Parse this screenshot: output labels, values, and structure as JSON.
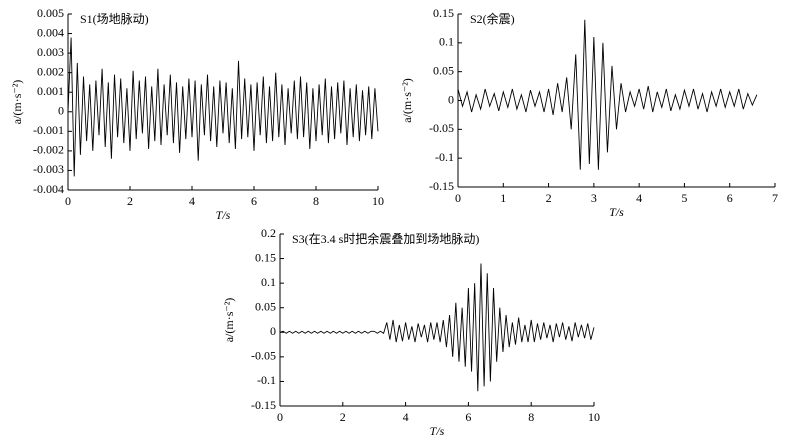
{
  "chart_data": [
    {
      "type": "line",
      "title": "S1(场地脉动)",
      "xlabel": "T/s",
      "ylabel": "a/(m·s⁻²)",
      "color": "#000000",
      "xlim": [
        0,
        10
      ],
      "xticks": [
        0,
        2,
        4,
        6,
        8,
        10
      ],
      "ylim": [
        -0.004,
        0.005
      ],
      "yticks": [
        -0.004,
        -0.003,
        -0.002,
        -0.001,
        0,
        0.001,
        0.002,
        0.003,
        0.004,
        0.005
      ],
      "x": [
        0,
        0.1,
        0.2,
        0.3,
        0.4,
        0.5,
        0.6,
        0.7,
        0.8,
        0.9,
        1,
        1.1,
        1.2,
        1.3,
        1.4,
        1.5,
        1.6,
        1.7,
        1.8,
        1.9,
        2,
        2.1,
        2.2,
        2.3,
        2.4,
        2.5,
        2.6,
        2.7,
        2.8,
        2.9,
        3,
        3.1,
        3.2,
        3.3,
        3.4,
        3.5,
        3.6,
        3.7,
        3.8,
        3.9,
        4,
        4.1,
        4.2,
        4.3,
        4.4,
        4.5,
        4.6,
        4.7,
        4.8,
        4.9,
        5,
        5.1,
        5.2,
        5.3,
        5.4,
        5.5,
        5.6,
        5.7,
        5.8,
        5.9,
        6,
        6.1,
        6.2,
        6.3,
        6.4,
        6.5,
        6.6,
        6.7,
        6.8,
        6.9,
        7,
        7.1,
        7.2,
        7.3,
        7.4,
        7.5,
        7.6,
        7.7,
        7.8,
        7.9,
        8,
        8.1,
        8.2,
        8.3,
        8.4,
        8.5,
        8.6,
        8.7,
        8.8,
        8.9,
        9,
        9.1,
        9.2,
        9.3,
        9.4,
        9.5,
        9.6,
        9.7,
        9.8,
        9.9,
        10
      ],
      "values": [
        0,
        0.0038,
        -0.0033,
        0.0025,
        -0.0022,
        0.0018,
        -0.0015,
        0.0014,
        -0.002,
        0.0016,
        -0.0012,
        0.0022,
        -0.0018,
        0.0015,
        -0.0024,
        0.0019,
        -0.0013,
        0.0017,
        -0.0016,
        0.0012,
        -0.002,
        0.0021,
        -0.0014,
        0.0016,
        -0.0011,
        0.0018,
        -0.0019,
        0.0013,
        -0.0015,
        0.0022,
        -0.0017,
        0.0014,
        -0.0012,
        0.0019,
        -0.0016,
        0.0015,
        -0.0021,
        0.0013,
        -0.0014,
        0.0017,
        -0.0013,
        0.0016,
        -0.0025,
        0.0014,
        -0.0012,
        0.0019,
        -0.0015,
        0.0013,
        -0.0018,
        0.0016,
        -0.0011,
        0.0015,
        -0.0016,
        0.0012,
        -0.0019,
        0.0026,
        -0.0014,
        0.0017,
        -0.0013,
        0.0014,
        -0.002,
        0.0015,
        -0.0012,
        0.0018,
        -0.0016,
        0.0013,
        -0.0015,
        0.002,
        -0.0013,
        0.0014,
        -0.0017,
        0.0012,
        -0.0011,
        0.0016,
        -0.0014,
        0.0018,
        -0.0013,
        0.0015,
        -0.0019,
        0.0012,
        -0.0015,
        0.0014,
        -0.0012,
        0.0017,
        -0.0016,
        0.0013,
        -0.0014,
        0.0015,
        -0.0011,
        0.0016,
        -0.0017,
        0.0012,
        -0.0013,
        0.0014,
        -0.0015,
        0.0011,
        -0.0012,
        0.0013,
        -0.0014,
        0.0012,
        -0.001
      ]
    },
    {
      "type": "line",
      "title": "S2(余震)",
      "xlabel": "T/s",
      "ylabel": "a/(m·s⁻²)",
      "color": "#000000",
      "xlim": [
        0,
        7
      ],
      "xticks": [
        0,
        1,
        2,
        3,
        4,
        5,
        6,
        7
      ],
      "ylim": [
        -0.15,
        0.15
      ],
      "yticks": [
        -0.15,
        -0.1,
        -0.05,
        0,
        0.05,
        0.1,
        0.15
      ],
      "x": [
        0,
        0.1,
        0.2,
        0.3,
        0.4,
        0.5,
        0.6,
        0.7,
        0.8,
        0.9,
        1,
        1.1,
        1.2,
        1.3,
        1.4,
        1.5,
        1.6,
        1.7,
        1.8,
        1.9,
        2,
        2.1,
        2.2,
        2.3,
        2.4,
        2.5,
        2.6,
        2.7,
        2.8,
        2.9,
        3,
        3.1,
        3.2,
        3.3,
        3.4,
        3.5,
        3.6,
        3.7,
        3.8,
        3.9,
        4,
        4.1,
        4.2,
        4.3,
        4.4,
        4.5,
        4.6,
        4.7,
        4.8,
        4.9,
        5,
        5.1,
        5.2,
        5.3,
        5.4,
        5.5,
        5.6,
        5.7,
        5.8,
        5.9,
        6,
        6.1,
        6.2,
        6.3,
        6.4,
        6.5,
        6.6
      ],
      "values": [
        0.02,
        -0.01,
        0.015,
        -0.02,
        0.01,
        -0.015,
        0.02,
        -0.01,
        0.012,
        -0.018,
        0.015,
        -0.012,
        0.02,
        -0.015,
        0.01,
        -0.02,
        0.018,
        -0.01,
        0.015,
        -0.02,
        0.02,
        -0.025,
        0.03,
        -0.02,
        0.04,
        -0.05,
        0.08,
        -0.12,
        0.14,
        -0.11,
        0.11,
        -0.12,
        0.1,
        -0.09,
        0.06,
        -0.05,
        0.03,
        -0.02,
        0.015,
        -0.01,
        0.02,
        -0.015,
        0.025,
        -0.02,
        0.015,
        -0.012,
        0.02,
        -0.018,
        0.01,
        -0.015,
        0.018,
        -0.01,
        0.02,
        -0.015,
        0.012,
        -0.02,
        0.015,
        -0.01,
        0.02,
        -0.012,
        0.015,
        -0.01,
        0.02,
        -0.015,
        0.012,
        -0.008,
        0.01
      ]
    },
    {
      "type": "line",
      "title": "S3(在3.4 s时把余震叠加到场地脉动)",
      "xlabel": "T/s",
      "ylabel": "a/(m·s⁻²)",
      "color": "#000000",
      "xlim": [
        0,
        10
      ],
      "xticks": [
        0,
        2,
        4,
        6,
        8,
        10
      ],
      "ylim": [
        -0.15,
        0.2
      ],
      "yticks": [
        -0.15,
        -0.1,
        -0.05,
        0,
        0.05,
        0.1,
        0.15,
        0.2
      ],
      "x": [
        0,
        0.1,
        0.2,
        0.3,
        0.4,
        0.5,
        0.6,
        0.7,
        0.8,
        0.9,
        1,
        1.1,
        1.2,
        1.3,
        1.4,
        1.5,
        1.6,
        1.7,
        1.8,
        1.9,
        2,
        2.1,
        2.2,
        2.3,
        2.4,
        2.5,
        2.6,
        2.7,
        2.8,
        2.9,
        3,
        3.1,
        3.2,
        3.3,
        3.4,
        3.5,
        3.6,
        3.7,
        3.8,
        3.9,
        4,
        4.1,
        4.2,
        4.3,
        4.4,
        4.5,
        4.6,
        4.7,
        4.8,
        4.9,
        5,
        5.1,
        5.2,
        5.3,
        5.4,
        5.5,
        5.6,
        5.7,
        5.8,
        5.9,
        6,
        6.1,
        6.2,
        6.3,
        6.4,
        6.5,
        6.6,
        6.7,
        6.8,
        6.9,
        7,
        7.1,
        7.2,
        7.3,
        7.4,
        7.5,
        7.6,
        7.7,
        7.8,
        7.9,
        8,
        8.1,
        8.2,
        8.3,
        8.4,
        8.5,
        8.6,
        8.7,
        8.8,
        8.9,
        9,
        9.1,
        9.2,
        9.3,
        9.4,
        9.5,
        9.6,
        9.7,
        9.8,
        9.9,
        10
      ],
      "values": [
        0,
        0.002,
        -0.002,
        0.002,
        -0.002,
        0.002,
        -0.002,
        0.002,
        -0.002,
        0.002,
        -0.002,
        0.002,
        -0.002,
        0.002,
        -0.002,
        0.002,
        -0.002,
        0.002,
        -0.002,
        0.002,
        -0.002,
        0.002,
        -0.002,
        0.002,
        -0.002,
        0.002,
        -0.002,
        0.002,
        -0.002,
        0.002,
        0.002,
        -0.002,
        0.002,
        -0.002,
        0.02,
        -0.015,
        0.025,
        -0.02,
        0.015,
        -0.018,
        0.02,
        -0.015,
        0.012,
        -0.02,
        0.018,
        -0.01,
        0.015,
        -0.02,
        0.02,
        -0.015,
        0.02,
        -0.02,
        0.025,
        -0.03,
        0.035,
        -0.05,
        0.06,
        -0.06,
        0.05,
        -0.07,
        0.09,
        -0.08,
        0.1,
        -0.12,
        0.14,
        -0.11,
        0.12,
        -0.1,
        0.09,
        -0.06,
        0.05,
        -0.04,
        0.035,
        -0.03,
        0.02,
        -0.025,
        0.03,
        -0.02,
        0.015,
        -0.02,
        0.025,
        -0.02,
        0.018,
        -0.015,
        0.02,
        -0.012,
        0.015,
        -0.02,
        0.018,
        -0.01,
        0.02,
        -0.015,
        0.012,
        -0.018,
        0.02,
        -0.01,
        0.015,
        -0.012,
        0.018,
        -0.015,
        0.01
      ]
    }
  ]
}
